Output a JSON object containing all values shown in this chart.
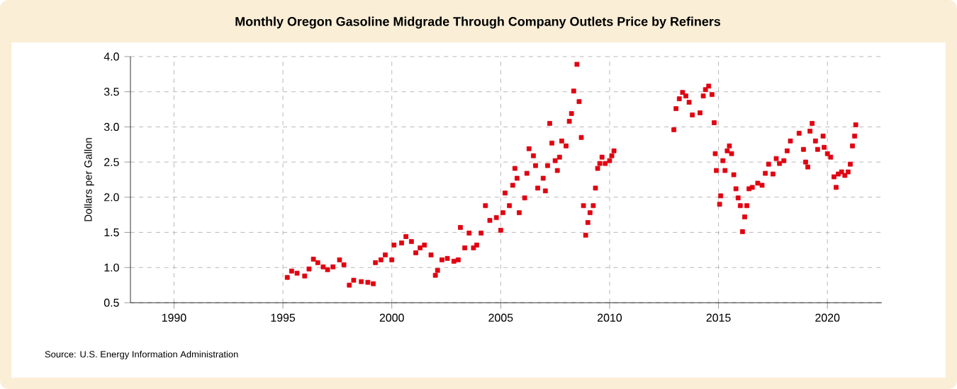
{
  "chart_data": {
    "type": "scatter",
    "title": "Monthly Oregon Gasoline Midgrade Through Company Outlets Price by Refiners",
    "ylabel": "Dollars per Gallon",
    "x": [
      1995.2,
      1995.4,
      1995.65,
      1996.0,
      1996.2,
      1996.4,
      1996.6,
      1996.85,
      1997.05,
      1997.3,
      1997.6,
      1997.8,
      1998.05,
      1998.25,
      1998.6,
      1998.9,
      1999.15,
      1999.25,
      1999.5,
      1999.7,
      2000.0,
      2000.1,
      2000.45,
      2000.65,
      2000.9,
      2001.1,
      2001.3,
      2001.5,
      2001.8,
      2002.0,
      2002.1,
      2002.3,
      2002.55,
      2002.85,
      2003.05,
      2003.15,
      2003.35,
      2003.55,
      2003.75,
      2003.9,
      2004.1,
      2004.3,
      2004.5,
      2004.8,
      2005.0,
      2005.1,
      2005.2,
      2005.4,
      2005.55,
      2005.65,
      2005.75,
      2005.85,
      2006.1,
      2006.2,
      2006.3,
      2006.5,
      2006.6,
      2006.7,
      2006.95,
      2007.05,
      2007.15,
      2007.25,
      2007.35,
      2007.5,
      2007.6,
      2007.7,
      2007.8,
      2008.0,
      2008.15,
      2008.25,
      2008.35,
      2008.5,
      2008.6,
      2008.7,
      2008.8,
      2008.9,
      2009.0,
      2009.1,
      2009.25,
      2009.35,
      2009.45,
      2009.55,
      2009.65,
      2009.8,
      2010.0,
      2010.1,
      2010.2,
      2012.95,
      2013.05,
      2013.2,
      2013.35,
      2013.5,
      2013.65,
      2013.8,
      2014.15,
      2014.3,
      2014.4,
      2014.55,
      2014.7,
      2014.8,
      2014.85,
      2014.9,
      2015.05,
      2015.1,
      2015.2,
      2015.3,
      2015.4,
      2015.5,
      2015.6,
      2015.7,
      2015.8,
      2015.9,
      2016.0,
      2016.1,
      2016.2,
      2016.3,
      2016.4,
      2016.55,
      2016.8,
      2017.0,
      2017.15,
      2017.3,
      2017.5,
      2017.65,
      2017.8,
      2018.0,
      2018.15,
      2018.3,
      2018.7,
      2018.9,
      2019.0,
      2019.1,
      2019.2,
      2019.3,
      2019.45,
      2019.55,
      2019.8,
      2019.85,
      2020.0,
      2020.15,
      2020.3,
      2020.4,
      2020.5,
      2020.65,
      2020.8,
      2020.95,
      2021.05,
      2021.15,
      2021.25,
      2021.3
    ],
    "series": [
      {
        "color": "#e00010",
        "values": [
          0.86,
          0.95,
          0.92,
          0.88,
          0.98,
          1.12,
          1.07,
          1.01,
          0.97,
          1.01,
          1.11,
          1.04,
          0.75,
          0.82,
          0.8,
          0.79,
          0.77,
          1.07,
          1.11,
          1.18,
          1.11,
          1.32,
          1.35,
          1.44,
          1.37,
          1.21,
          1.28,
          1.32,
          1.18,
          0.89,
          0.96,
          1.11,
          1.13,
          1.09,
          1.11,
          1.57,
          1.28,
          1.49,
          1.28,
          1.32,
          1.49,
          1.88,
          1.67,
          1.71,
          1.53,
          1.78,
          2.06,
          1.88,
          2.17,
          2.41,
          2.27,
          1.78,
          1.99,
          2.34,
          2.69,
          2.59,
          2.45,
          2.13,
          2.27,
          2.09,
          2.45,
          3.05,
          2.77,
          2.52,
          2.38,
          2.57,
          2.8,
          2.73,
          3.08,
          3.19,
          3.51,
          3.89,
          3.36,
          2.85,
          1.88,
          1.46,
          1.64,
          1.78,
          1.88,
          2.13,
          2.41,
          2.48,
          2.57,
          2.48,
          2.52,
          2.59,
          2.66,
          2.96,
          3.26,
          3.4,
          3.49,
          3.44,
          3.35,
          3.17,
          3.2,
          3.44,
          3.53,
          3.58,
          3.46,
          3.06,
          2.62,
          2.38,
          1.9,
          2.02,
          2.52,
          2.38,
          2.66,
          2.73,
          2.62,
          2.32,
          2.12,
          1.99,
          1.88,
          1.51,
          1.72,
          1.88,
          2.12,
          2.14,
          2.2,
          2.17,
          2.34,
          2.47,
          2.33,
          2.55,
          2.48,
          2.52,
          2.66,
          2.8,
          2.91,
          2.68,
          2.5,
          2.43,
          2.94,
          3.05,
          2.8,
          2.68,
          2.87,
          2.71,
          2.62,
          2.57,
          2.29,
          2.14,
          2.33,
          2.36,
          2.31,
          2.36,
          2.47,
          2.73,
          2.87,
          3.03
        ]
      }
    ],
    "xlim": [
      1988,
      2022.5
    ],
    "xticks": [
      1990,
      1995,
      2000,
      2005,
      2010,
      2015,
      2020
    ],
    "ylim": [
      0.5,
      4.0
    ],
    "yticks": [
      0.5,
      {
        "value": 1,
        "label": "1.0"
      },
      1.5,
      {
        "value": 2,
        "label": "2.0"
      },
      2.5,
      {
        "value": 3,
        "label": "3.0"
      },
      3.5,
      {
        "value": 4,
        "label": "4.0"
      }
    ],
    "grid": true,
    "marker": "square",
    "annotations": [
      "Source: U.S. Energy Information Administration"
    ]
  }
}
